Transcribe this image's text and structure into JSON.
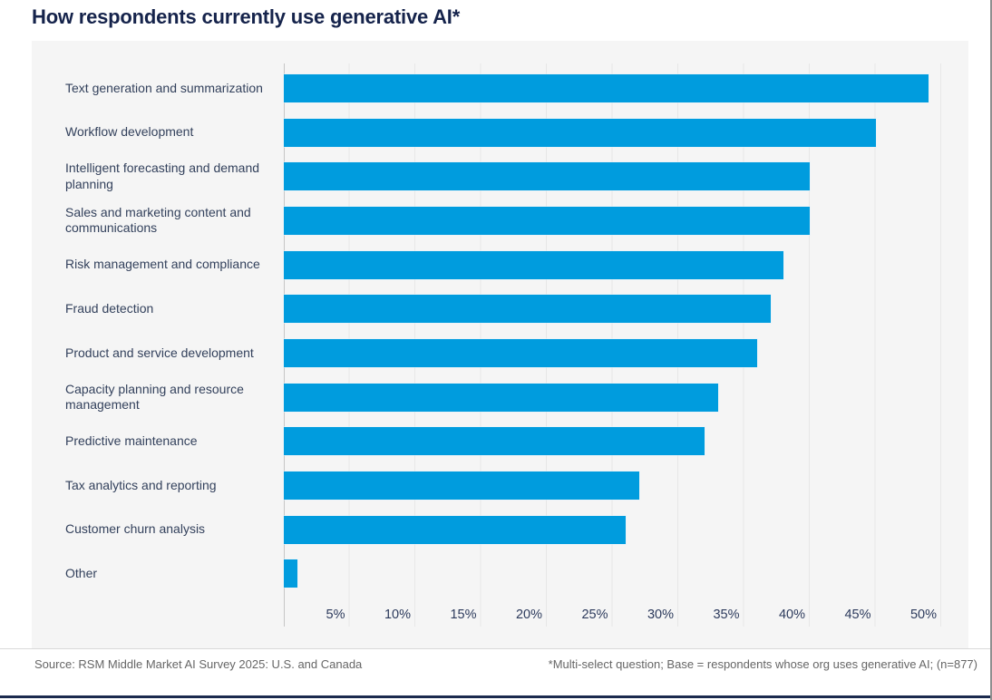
{
  "title": "How respondents currently use generative AI*",
  "footer": {
    "source": "Source: RSM Middle Market AI Survey 2025: U.S. and Canada",
    "note": "*Multi-select question; Base = respondents whose org uses generative AI; (n=877)"
  },
  "colors": {
    "bar_blue": "#009CDE",
    "title_navy": "#15234b",
    "label_navy": "#33415c",
    "tick_navy": "#2c3a5c",
    "panel_gray": "#f5f5f5",
    "gridline_gray": "#e7e7e7",
    "axis_gray": "#c6c6c6",
    "footer_text_gray": "#666666",
    "footer_rule_gray": "#d9d9d9",
    "bottom_bar_navy": "#1b2a4e"
  },
  "chart_data": {
    "type": "bar",
    "orientation": "horizontal",
    "title": "How respondents currently use generative AI*",
    "categories": [
      "Text generation and summarization",
      "Workflow development",
      "Intelligent forecasting and demand planning",
      "Sales and marketing content and communications",
      "Risk management and compliance",
      "Fraud detection",
      "Product and service development",
      "Capacity planning and resource management",
      "Predictive maintenance",
      "Tax analytics and reporting",
      "Customer churn analysis",
      "Other"
    ],
    "values": [
      49,
      45,
      40,
      40,
      38,
      37,
      36,
      33,
      32,
      27,
      26,
      1
    ],
    "unit": "%",
    "x_ticks": [
      "5%",
      "10%",
      "15%",
      "20%",
      "25%",
      "30%",
      "35%",
      "40%",
      "45%",
      "50%"
    ],
    "x_tick_step_percent": 5,
    "xlim": [
      0,
      52
    ],
    "grid": "vertical-only",
    "legend": "none",
    "bar_color": "#009CDE"
  }
}
